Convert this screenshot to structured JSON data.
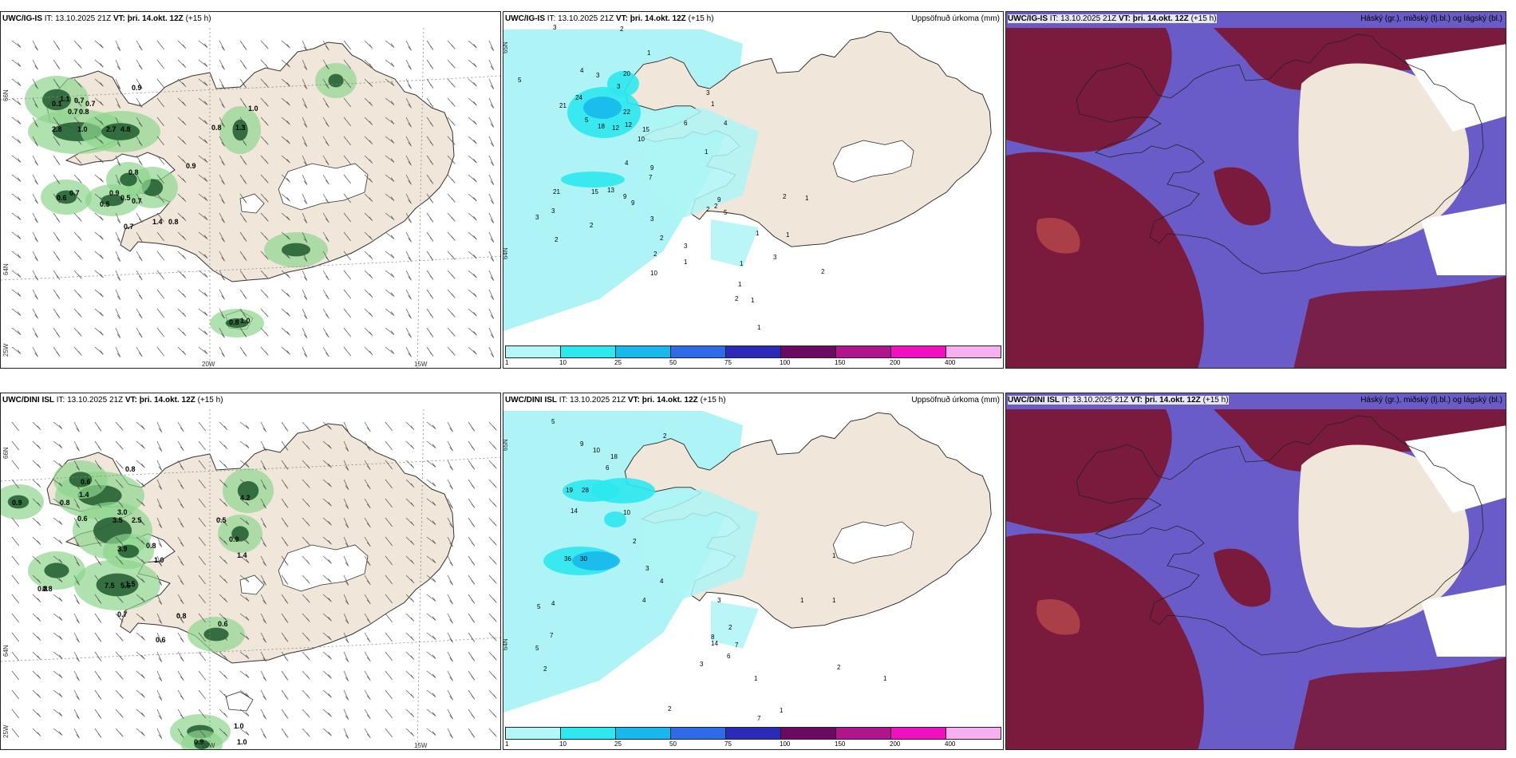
{
  "colors": {
    "land": "#f1e6da",
    "sea_precip": "#aef4f6",
    "cloud_high": "#6a5cc8",
    "cloud_mid": "#7a1a3c",
    "cloud_low": "#c0504d",
    "wind_green": "#8fd68f",
    "wind_dark": "#1f5a2e"
  },
  "rows": [
    {
      "wind": {
        "header_model": "UWC/IG-IS",
        "header_it": "IT: 13.10.2025 21Z",
        "header_vt": "VT: þri. 14.okt. 12Z",
        "header_lead": "(+15 h)",
        "lon_labels": [
          "20W",
          "15W"
        ],
        "lat_labels": [
          "66N",
          "64N",
          "25W"
        ],
        "values": [
          "0.9",
          "0.7",
          "0.1",
          "1.1",
          "0.7",
          "0.8",
          "0.7",
          "2.8",
          "1.0",
          "2.7",
          "4.8",
          "1.0",
          "0.8",
          "1.3",
          "0.8",
          "0.9",
          "0.6",
          "0.7",
          "0.9",
          "0.5",
          "0.7",
          "0.5",
          "0.7",
          "1.4",
          "0.8",
          "0.8",
          "1.0"
        ]
      },
      "precip": {
        "header_model": "UWC/IG-IS",
        "header_it": "IT: 13.10.2025 21Z",
        "header_vt": "VT: þri. 14.okt. 12Z",
        "header_lead": "(+15 h)",
        "right_title": "Uppsöfnuð úrkoma (mm)",
        "lat_labels": [
          "65N",
          "64N"
        ],
        "values": [
          "3",
          "2",
          "1",
          "5",
          "4",
          "3",
          "20",
          "3",
          "24",
          "21",
          "22",
          "12",
          "15",
          "5",
          "18",
          "12",
          "10",
          "4",
          "9",
          "7",
          "21",
          "15",
          "13",
          "9",
          "9",
          "3",
          "3",
          "2",
          "2",
          "3",
          "1",
          "4",
          "6",
          "1",
          "9",
          "5",
          "2",
          "3",
          "2",
          "2",
          "10",
          "2",
          "3",
          "1",
          "1",
          "1",
          "2",
          "1",
          "2",
          "1",
          "1",
          "2",
          "1",
          "3",
          "1"
        ],
        "legend": [
          "1",
          "10",
          "25",
          "50",
          "75",
          "100",
          "150",
          "200",
          "400"
        ]
      },
      "cloud": {
        "header_model": "UWC/IG-IS",
        "header_it": "IT: 13.10.2025 21Z",
        "header_vt": "VT: þri. 14.okt. 12Z",
        "header_lead": "(+15 h)",
        "right_title": "Háský (gr.), miðský (fj.bl.) og lágský (bl.)"
      }
    },
    {
      "wind": {
        "header_model": "UWC/DINI ISL",
        "header_it": "IT: 13.10.2025 21Z",
        "header_vt": "VT: þri. 14.okt. 12Z",
        "header_lead": "(+15 h)",
        "lon_labels": [
          "20W",
          "15W"
        ],
        "lat_labels": [
          "66N",
          "64N",
          "25W"
        ],
        "values": [
          "0.8",
          "0.6",
          "1.4",
          "0.9",
          "0.8",
          "0.6",
          "3.0",
          "3.5",
          "2.5",
          "3.9",
          "0.8",
          "1.0",
          "1.5",
          "7.5",
          "5.6",
          "0.8",
          "0.8",
          "0.7",
          "0.8",
          "0.6",
          "0.6",
          "0.5",
          "4.2",
          "0.9",
          "1.4",
          "1.0",
          "0.9",
          "1.0"
        ]
      },
      "precip": {
        "header_model": "UWC/DINI ISL",
        "header_it": "IT: 13.10.2025 21Z",
        "header_vt": "VT: þri. 14.okt. 12Z",
        "header_lead": "(+15 h)",
        "right_title": "Uppsöfnuð úrkoma (mm)",
        "lat_labels": [
          "65N",
          "64N"
        ],
        "values": [
          "5",
          "2",
          "9",
          "10",
          "18",
          "6",
          "19",
          "28",
          "14",
          "10",
          "36",
          "30",
          "4",
          "5",
          "7",
          "5",
          "2",
          "2",
          "3",
          "4",
          "4",
          "3",
          "2",
          "7",
          "8",
          "14",
          "6",
          "3",
          "1",
          "7",
          "1",
          "2",
          "1",
          "1",
          "1",
          "2",
          "1"
        ],
        "legend": [
          "1",
          "10",
          "25",
          "50",
          "75",
          "100",
          "150",
          "200",
          "400"
        ]
      },
      "cloud": {
        "header_model": "UWC/DINI ISL",
        "header_it": "IT: 13.10.2025 21Z",
        "header_vt": "VT: þri. 14.okt. 12Z",
        "header_lead": "(+15 h)",
        "right_title": "Háský (gr.), miðský (fj.bl.) og lágský (bl.)"
      }
    }
  ]
}
